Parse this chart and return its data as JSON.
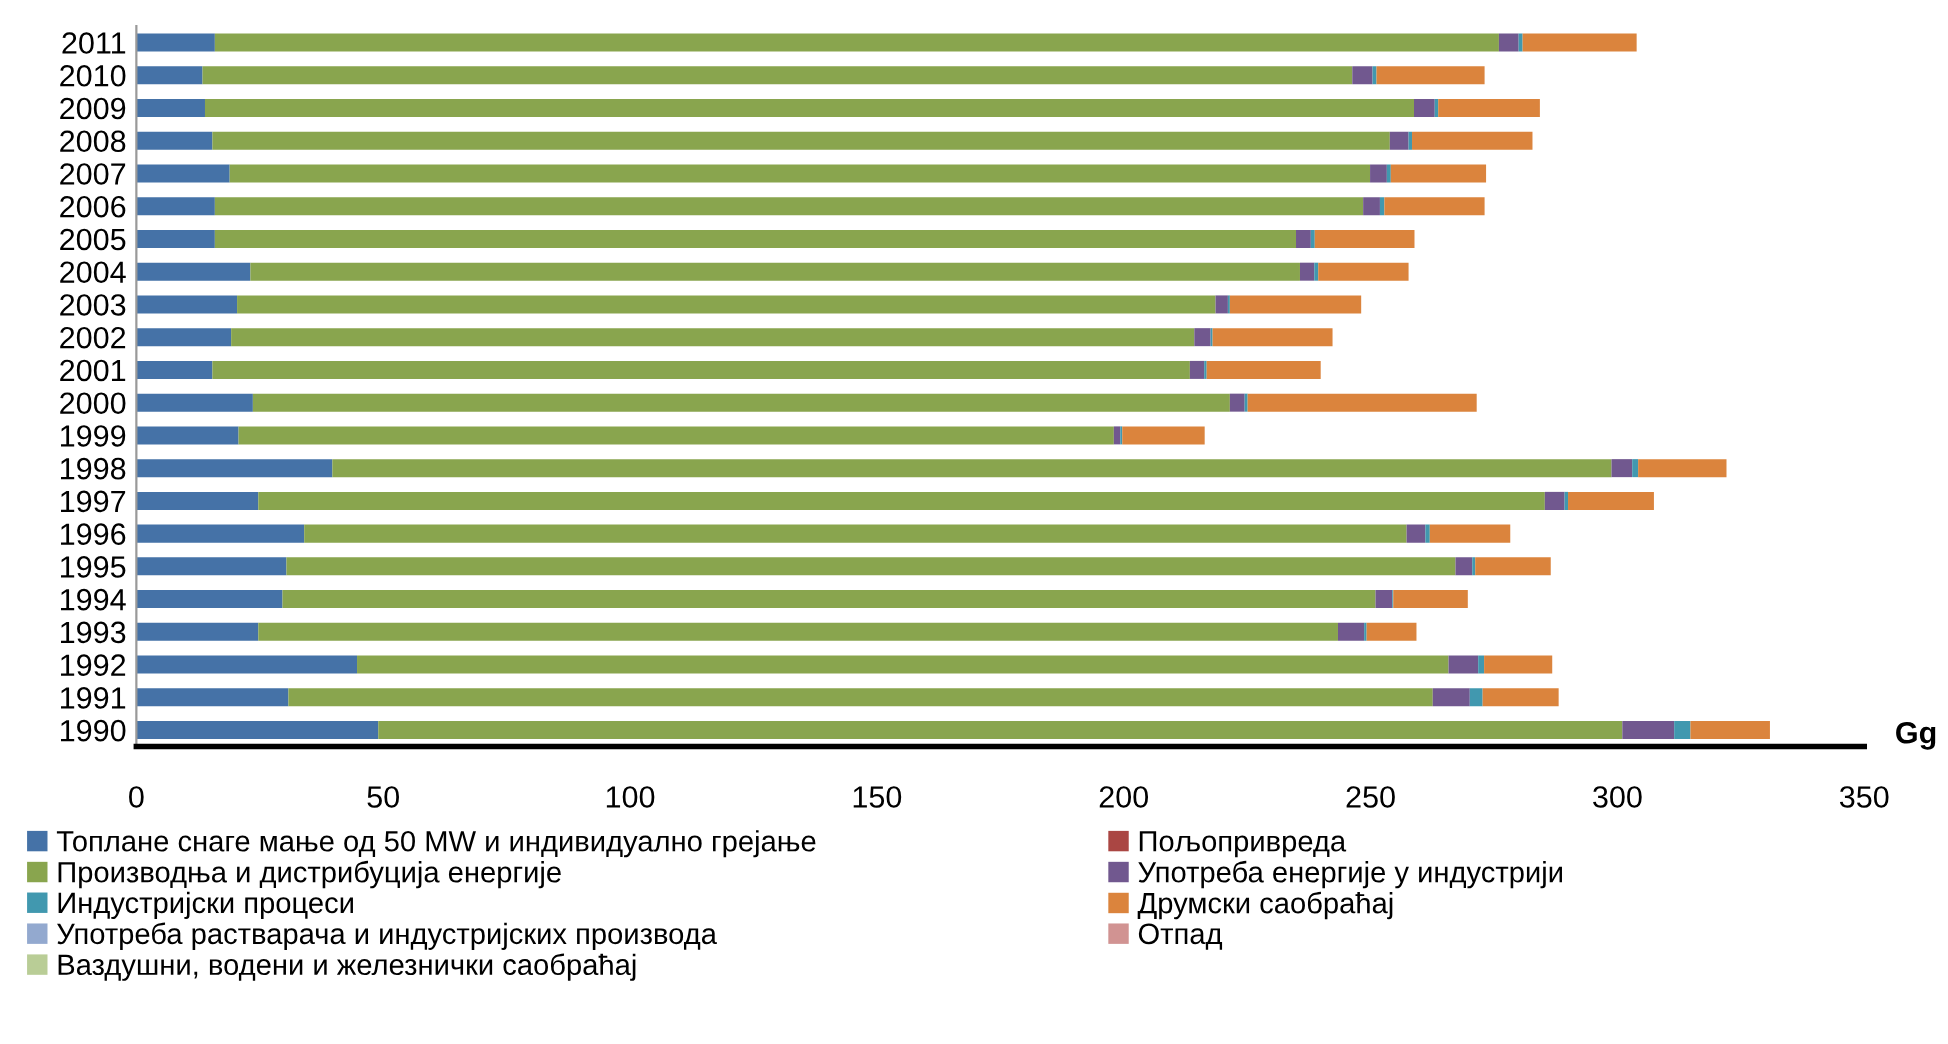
{
  "chart_data": {
    "type": "bar",
    "orientation": "horizontal",
    "stacked": true,
    "xlabel": "Gg",
    "categories": [
      "2011",
      "2010",
      "2009",
      "2008",
      "2007",
      "2006",
      "2005",
      "2004",
      "2003",
      "2002",
      "2001",
      "2000",
      "1999",
      "1998",
      "1997",
      "1996",
      "1995",
      "1994",
      "1993",
      "1992",
      "1991",
      "1990"
    ],
    "xlim": [
      0,
      350
    ],
    "xticks": [
      0,
      50,
      100,
      150,
      200,
      250,
      300,
      350
    ],
    "grid": false,
    "legend": "bottom",
    "series": [
      {
        "name": "Топлане снаге мање од 50 MW и индивидуално грејање",
        "color": "#4572a7",
        "values": [
          15.9,
          13.4,
          13.9,
          15.4,
          18.9,
          15.9,
          15.9,
          23.1,
          20.4,
          19.2,
          15.4,
          23.6,
          20.7,
          39.7,
          24.7,
          34.0,
          30.4,
          29.6,
          24.7,
          44.7,
          30.8,
          49.0
        ]
      },
      {
        "name": "Пољопривреда",
        "color": "#aa4643",
        "values": [
          0,
          0,
          0,
          0,
          0,
          0,
          0,
          0,
          0,
          0,
          0,
          0,
          0,
          0,
          0,
          0,
          0,
          0,
          0,
          0,
          0,
          0
        ]
      },
      {
        "name": "Производња и дистрибуција енергије",
        "color": "#89a54e",
        "values": [
          260.1,
          232.9,
          244.9,
          238.5,
          231.0,
          232.6,
          219.0,
          212.6,
          198.2,
          195.1,
          198.0,
          197.9,
          177.3,
          259.1,
          260.6,
          223.3,
          236.8,
          221.4,
          218.7,
          221.1,
          231.8,
          252.0
        ]
      },
      {
        "name": "Употреба енергије у индустрији",
        "color": "#71588f",
        "values": [
          4.0,
          4.1,
          4.2,
          3.8,
          3.4,
          3.4,
          3.0,
          2.9,
          2.5,
          3.3,
          2.9,
          3.0,
          1.3,
          4.2,
          4.0,
          3.8,
          3.4,
          3.4,
          5.3,
          6.0,
          7.5,
          10.5
        ]
      },
      {
        "name": "Индустријски процеси",
        "color": "#4198af",
        "values": [
          0.8,
          0.8,
          0.7,
          0.7,
          0.8,
          0.9,
          0.8,
          0.8,
          0.4,
          0.4,
          0.5,
          0.6,
          0.4,
          1.2,
          0.7,
          0.9,
          0.6,
          0.2,
          0.5,
          1.2,
          2.6,
          3.3
        ]
      },
      {
        "name": "Друмски саобраћај",
        "color": "#db843d",
        "values": [
          23.1,
          21.9,
          20.6,
          24.4,
          19.3,
          20.3,
          20.2,
          18.3,
          26.6,
          24.3,
          23.1,
          46.4,
          16.7,
          17.9,
          17.4,
          16.3,
          15.3,
          15.1,
          10.1,
          13.8,
          15.4,
          16.1
        ]
      },
      {
        "name": "Употреба растварача и индустријских производа",
        "color": "#93a9cf",
        "values": [
          0,
          0,
          0,
          0,
          0,
          0,
          0,
          0,
          0,
          0,
          0,
          0,
          0,
          0,
          0,
          0,
          0,
          0,
          0,
          0,
          0,
          0
        ]
      },
      {
        "name": "Отпад",
        "color": "#d19392",
        "values": [
          0,
          0,
          0,
          0,
          0,
          0,
          0,
          0,
          0,
          0,
          0,
          0,
          0,
          0,
          0,
          0,
          0,
          0,
          0,
          0,
          0,
          0
        ]
      },
      {
        "name": "Ваздушни, водени и железнички саобраћај",
        "color": "#b9cd96",
        "values": [
          0,
          0,
          0,
          0,
          0,
          0,
          0,
          0,
          0,
          0,
          0,
          0,
          0,
          0,
          0,
          0,
          0,
          0,
          0,
          0,
          0,
          0
        ]
      }
    ]
  }
}
